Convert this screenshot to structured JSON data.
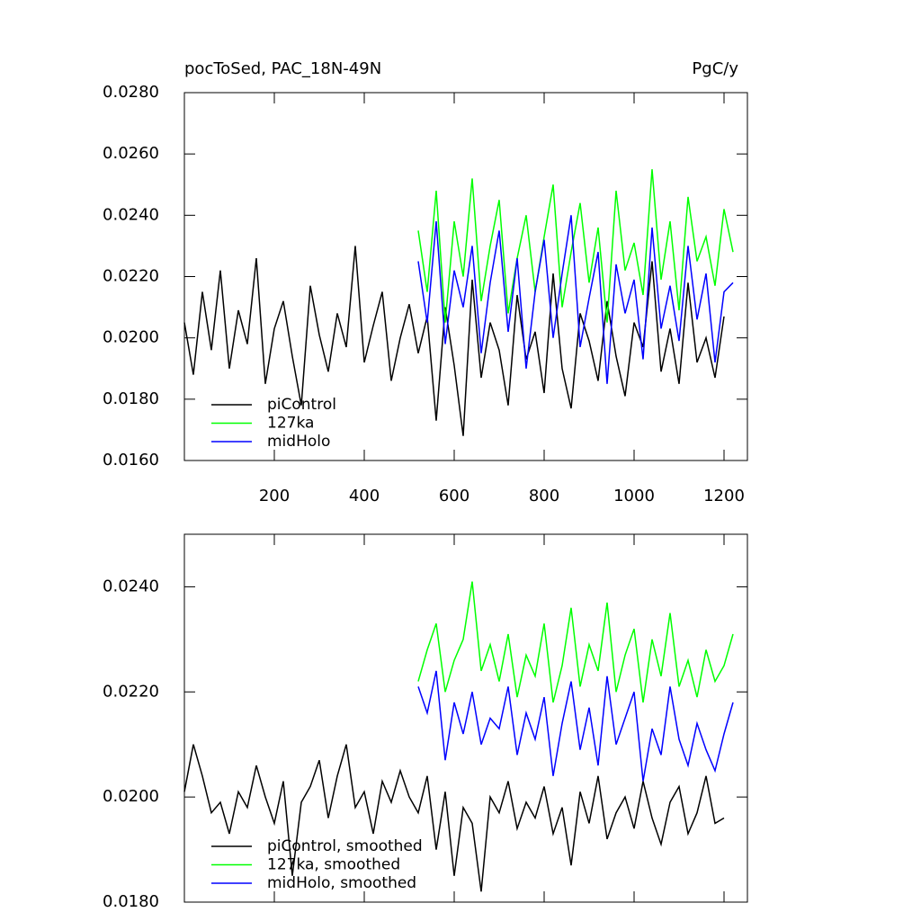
{
  "chart_data": [
    {
      "type": "line",
      "title": "pocToSed, PAC_18N-49N",
      "units": "PgC/y",
      "x": [
        0,
        20,
        40,
        60,
        80,
        100,
        120,
        140,
        160,
        180,
        200,
        220,
        240,
        260,
        280,
        300,
        320,
        340,
        360,
        380,
        400,
        420,
        440,
        460,
        480,
        500,
        520,
        540,
        560,
        580,
        600,
        620,
        640,
        660,
        680,
        700,
        720,
        740,
        760,
        780,
        800,
        820,
        840,
        860,
        880,
        900,
        920,
        940,
        960,
        980,
        1000,
        1020,
        1040,
        1060,
        1080,
        1100,
        1120,
        1140,
        1160,
        1180,
        1200,
        1220
      ],
      "series": [
        {
          "name": "piControl",
          "color": "#000000",
          "values": [
            0.0205,
            0.0188,
            0.0215,
            0.0196,
            0.0222,
            0.019,
            0.0209,
            0.0198,
            0.0226,
            0.0185,
            0.0203,
            0.0212,
            0.0194,
            0.0178,
            0.0217,
            0.0201,
            0.0189,
            0.0208,
            0.0197,
            0.023,
            0.0192,
            0.0204,
            0.0215,
            0.0186,
            0.02,
            0.0211,
            0.0195,
            0.0207,
            0.0173,
            0.021,
            0.0191,
            0.0168,
            0.0219,
            0.0187,
            0.0205,
            0.0196,
            0.0178,
            0.0214,
            0.0193,
            0.0202,
            0.0182,
            0.0221,
            0.019,
            0.0177,
            0.0208,
            0.0199,
            0.0186,
            0.0212,
            0.0194,
            0.0181,
            0.0205,
            0.0197,
            0.0225,
            0.0189,
            0.0203,
            0.0185,
            0.0218,
            0.0192,
            0.02,
            0.0187,
            0.0207,
            null
          ]
        },
        {
          "name": "127ka",
          "color": "#00ff00",
          "values": [
            null,
            null,
            null,
            null,
            null,
            null,
            null,
            null,
            null,
            null,
            null,
            null,
            null,
            null,
            null,
            null,
            null,
            null,
            null,
            null,
            null,
            null,
            null,
            null,
            null,
            null,
            0.0235,
            0.0215,
            0.0248,
            0.0205,
            0.0238,
            0.022,
            0.0252,
            0.0212,
            0.023,
            0.0245,
            0.0208,
            0.0226,
            0.024,
            0.0215,
            0.0233,
            0.025,
            0.021,
            0.0228,
            0.0244,
            0.0218,
            0.0236,
            0.0205,
            0.0248,
            0.0222,
            0.0231,
            0.0214,
            0.0255,
            0.0219,
            0.0238,
            0.0209,
            0.0246,
            0.0225,
            0.0233,
            0.0217,
            0.0242,
            0.0228
          ]
        },
        {
          "name": "midHolo",
          "color": "#0000ff",
          "values": [
            null,
            null,
            null,
            null,
            null,
            null,
            null,
            null,
            null,
            null,
            null,
            null,
            null,
            null,
            null,
            null,
            null,
            null,
            null,
            null,
            null,
            null,
            null,
            null,
            null,
            null,
            0.0225,
            0.0205,
            0.0238,
            0.0198,
            0.0222,
            0.021,
            0.023,
            0.0195,
            0.0218,
            0.0235,
            0.0202,
            0.0226,
            0.019,
            0.0215,
            0.0232,
            0.02,
            0.0221,
            0.024,
            0.0197,
            0.0213,
            0.0228,
            0.0185,
            0.0224,
            0.0208,
            0.0219,
            0.0193,
            0.0236,
            0.0203,
            0.0217,
            0.0199,
            0.023,
            0.0206,
            0.0221,
            0.0192,
            0.0215,
            0.0218
          ]
        }
      ],
      "xlim": [
        0,
        1252
      ],
      "xticks": [
        200,
        400,
        600,
        800,
        1000,
        1200
      ],
      "x_tick_labels": true,
      "ylim": [
        0.016,
        0.028
      ],
      "yticks": [
        {
          "value": 0.016,
          "label": "0.0160"
        },
        {
          "value": 0.018,
          "label": "0.0180"
        },
        {
          "value": 0.02,
          "label": "0.0200"
        },
        {
          "value": 0.022,
          "label": "0.0220"
        },
        {
          "value": 0.024,
          "label": "0.0240"
        },
        {
          "value": 0.026,
          "label": "0.0260"
        },
        {
          "value": 0.028,
          "label": "0.0280"
        }
      ],
      "legend": "lower left"
    },
    {
      "type": "line",
      "x": [
        0,
        20,
        40,
        60,
        80,
        100,
        120,
        140,
        160,
        180,
        200,
        220,
        240,
        260,
        280,
        300,
        320,
        340,
        360,
        380,
        400,
        420,
        440,
        460,
        480,
        500,
        520,
        540,
        560,
        580,
        600,
        620,
        640,
        660,
        680,
        700,
        720,
        740,
        760,
        780,
        800,
        820,
        840,
        860,
        880,
        900,
        920,
        940,
        960,
        980,
        1000,
        1020,
        1040,
        1060,
        1080,
        1100,
        1120,
        1140,
        1160,
        1180,
        1200,
        1220
      ],
      "series": [
        {
          "name": "piControl, smoothed",
          "color": "#000000",
          "values": [
            0.0201,
            0.021,
            0.0204,
            0.0197,
            0.0199,
            0.0193,
            0.0201,
            0.0198,
            0.0206,
            0.02,
            0.0195,
            0.0203,
            0.0185,
            0.0199,
            0.0202,
            0.0207,
            0.0196,
            0.0204,
            0.021,
            0.0198,
            0.0201,
            0.0193,
            0.0203,
            0.0199,
            0.0205,
            0.02,
            0.0197,
            0.0204,
            0.019,
            0.0201,
            0.0185,
            0.0198,
            0.0195,
            0.0182,
            0.02,
            0.0197,
            0.0203,
            0.0194,
            0.0199,
            0.0196,
            0.0202,
            0.0193,
            0.0198,
            0.0187,
            0.0201,
            0.0195,
            0.0204,
            0.0192,
            0.0197,
            0.02,
            0.0194,
            0.0203,
            0.0196,
            0.0191,
            0.0199,
            0.0202,
            0.0193,
            0.0197,
            0.0204,
            0.0195,
            0.0196,
            null
          ]
        },
        {
          "name": "127ka, smoothed",
          "color": "#00ff00",
          "values": [
            null,
            null,
            null,
            null,
            null,
            null,
            null,
            null,
            null,
            null,
            null,
            null,
            null,
            null,
            null,
            null,
            null,
            null,
            null,
            null,
            null,
            null,
            null,
            null,
            null,
            null,
            0.0222,
            0.0228,
            0.0233,
            0.022,
            0.0226,
            0.023,
            0.0241,
            0.0224,
            0.0229,
            0.0222,
            0.0231,
            0.0219,
            0.0227,
            0.0223,
            0.0233,
            0.0218,
            0.0225,
            0.0236,
            0.0221,
            0.0229,
            0.0224,
            0.0237,
            0.022,
            0.0227,
            0.0232,
            0.0218,
            0.023,
            0.0223,
            0.0235,
            0.0221,
            0.0226,
            0.0219,
            0.0228,
            0.0222,
            0.0225,
            0.0231
          ]
        },
        {
          "name": "midHolo, smoothed",
          "color": "#0000ff",
          "values": [
            null,
            null,
            null,
            null,
            null,
            null,
            null,
            null,
            null,
            null,
            null,
            null,
            null,
            null,
            null,
            null,
            null,
            null,
            null,
            null,
            null,
            null,
            null,
            null,
            null,
            null,
            0.0221,
            0.0216,
            0.0224,
            0.0207,
            0.0218,
            0.0212,
            0.022,
            0.021,
            0.0215,
            0.0213,
            0.0221,
            0.0208,
            0.0216,
            0.0211,
            0.0219,
            0.0204,
            0.0214,
            0.0222,
            0.0209,
            0.0217,
            0.0206,
            0.0223,
            0.021,
            0.0215,
            0.022,
            0.0203,
            0.0213,
            0.0208,
            0.0221,
            0.0211,
            0.0206,
            0.0214,
            0.0209,
            0.0205,
            0.0212,
            0.0218
          ]
        }
      ],
      "xlim": [
        0,
        1252
      ],
      "xticks": [
        200,
        400,
        600,
        800,
        1000,
        1200
      ],
      "x_tick_labels": false,
      "ylim": [
        0.018,
        0.025
      ],
      "yticks": [
        {
          "value": 0.018,
          "label": "0.0180"
        },
        {
          "value": 0.02,
          "label": "0.0200"
        },
        {
          "value": 0.022,
          "label": "0.0220"
        },
        {
          "value": 0.024,
          "label": "0.0240"
        }
      ],
      "legend": "lower left"
    }
  ]
}
